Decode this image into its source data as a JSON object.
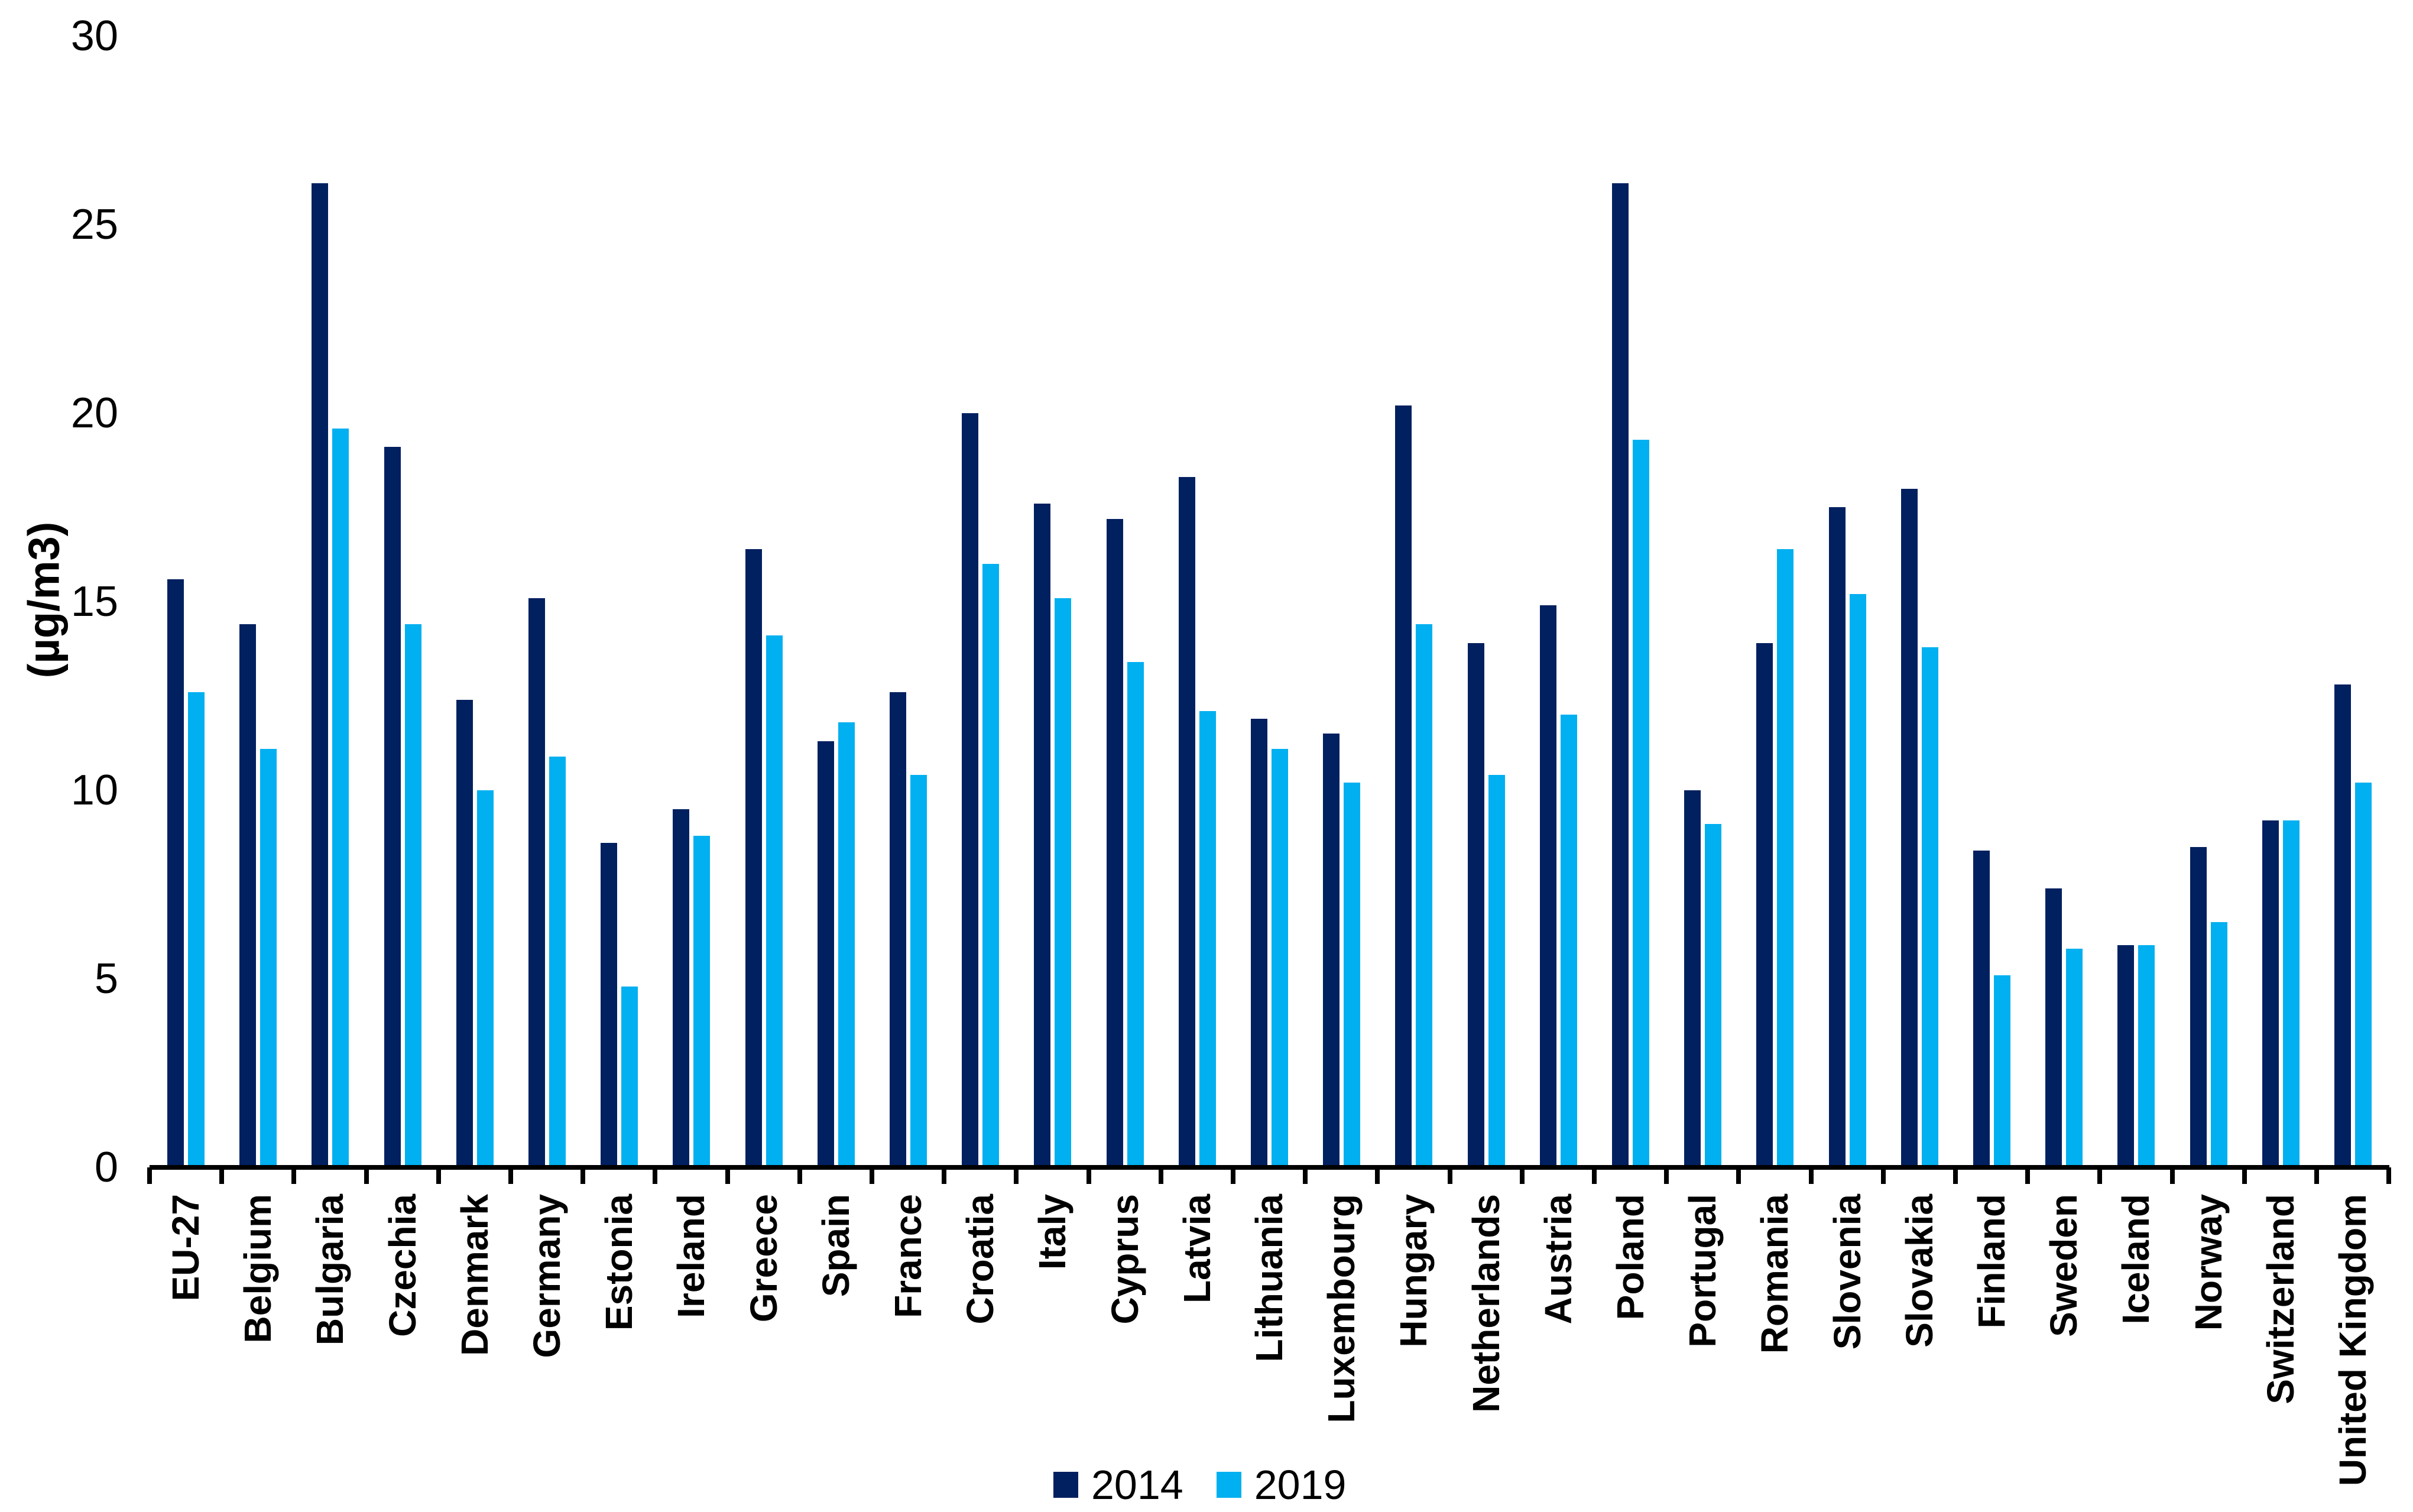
{
  "chart_data": {
    "type": "bar",
    "title": "",
    "ylabel": "(µg/m3)",
    "xlabel": "",
    "ylim": [
      0,
      30
    ],
    "yticks": [
      0,
      5,
      10,
      15,
      20,
      25,
      30
    ],
    "grid": false,
    "legend_position": "bottom",
    "categories": [
      "EU-27",
      "Belgium",
      "Bulgaria",
      "Czechia",
      "Denmark",
      "Germany",
      "Estonia",
      "Ireland",
      "Greece",
      "Spain",
      "France",
      "Croatia",
      "Italy",
      "Cyprus",
      "Latvia",
      "Lithuania",
      "Luxembourg",
      "Hungary",
      "Netherlands",
      "Austria",
      "Poland",
      "Portugal",
      "Romania",
      "Slovenia",
      "Slovakia",
      "Finland",
      "Sweden",
      "Iceland",
      "Norway",
      "Switzerland",
      "United Kingdom"
    ],
    "series": [
      {
        "name": "2014",
        "color": "#002060",
        "values": [
          15.6,
          14.4,
          26.1,
          19.1,
          12.4,
          15.1,
          8.6,
          9.5,
          16.4,
          11.3,
          12.6,
          20.0,
          17.6,
          17.2,
          18.3,
          11.9,
          11.5,
          20.2,
          13.9,
          14.9,
          26.1,
          10.0,
          13.9,
          17.5,
          18.0,
          8.4,
          7.4,
          5.9,
          8.5,
          9.2,
          12.8
        ]
      },
      {
        "name": "2019",
        "color": "#00B0F0",
        "values": [
          12.6,
          11.1,
          19.6,
          14.4,
          10.0,
          10.9,
          4.8,
          8.8,
          14.1,
          11.8,
          10.4,
          16.0,
          15.1,
          13.4,
          12.1,
          11.1,
          10.2,
          14.4,
          10.4,
          12.0,
          19.3,
          9.1,
          16.4,
          15.2,
          13.8,
          5.1,
          5.8,
          5.9,
          6.5,
          9.2,
          10.2
        ]
      }
    ]
  }
}
